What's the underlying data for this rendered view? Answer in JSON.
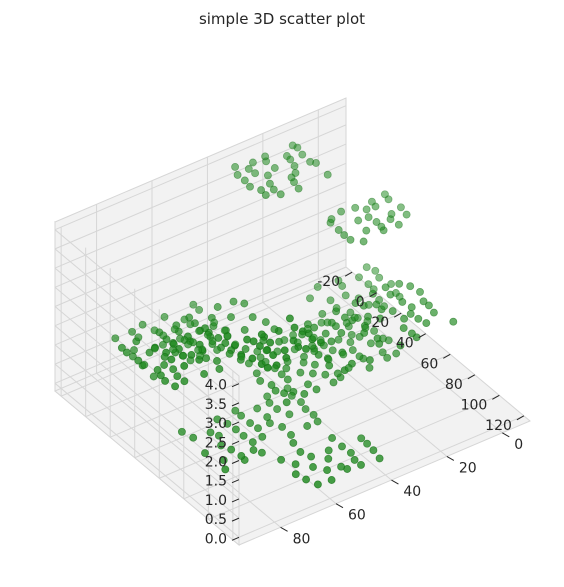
{
  "chart_data": {
    "type": "scatter",
    "projection": "3d",
    "title": "simple 3D scatter plot",
    "xlabel": "",
    "ylabel": "",
    "zlabel": "",
    "x_ticks": [
      "-20",
      "0",
      "20",
      "40",
      "60",
      "80",
      "100",
      "120"
    ],
    "y_ticks": [
      "0",
      "20",
      "40",
      "60",
      "80"
    ],
    "z_ticks": [
      "0.0",
      "0.5",
      "1.0",
      "1.5",
      "2.0",
      "2.5",
      "3.0",
      "3.5",
      "4.0"
    ],
    "xlim": [
      -25,
      125
    ],
    "ylim": [
      -10,
      95
    ],
    "zlim": [
      -0.2,
      4.2
    ],
    "grid": true,
    "marker_color": "#228B22",
    "pane_color": "#f2f2f2",
    "grid_color": "#d6d6d6",
    "view": {
      "elev_deg": 30,
      "azim_deg": 45
    },
    "layers": [
      {
        "z": 0.0,
        "clusters": [
          {
            "cx": 60,
            "cy": 60,
            "hw": 18,
            "hh": 18,
            "nx": 7,
            "ny": 7
          },
          {
            "cx": 100,
            "cy": 50,
            "hw": 12,
            "hh": 12,
            "nx": 5,
            "ny": 5
          }
        ]
      },
      {
        "z": 1.0,
        "clusters": [
          {
            "cx": 5,
            "cy": 65,
            "hw": 18,
            "hh": 14,
            "nx": 7,
            "ny": 6
          },
          {
            "cx": 55,
            "cy": 35,
            "hw": 20,
            "hh": 20,
            "nx": 9,
            "ny": 9
          },
          {
            "cx": 25,
            "cy": 10,
            "hw": 15,
            "hh": 12,
            "nx": 6,
            "ny": 5
          }
        ]
      },
      {
        "z": 2.0,
        "clusters": [
          {
            "cx": 40,
            "cy": 70,
            "hw": 20,
            "hh": 20,
            "nx": 8,
            "ny": 8
          },
          {
            "cx": 75,
            "cy": 25,
            "hw": 20,
            "hh": 20,
            "nx": 8,
            "ny": 8
          }
        ]
      },
      {
        "z": 3.0,
        "clusters": [
          {
            "cx": 65,
            "cy": 85,
            "hw": 10,
            "hh": 8,
            "nx": 5,
            "ny": 4
          },
          {
            "cx": 30,
            "cy": 5,
            "hw": 12,
            "hh": 10,
            "nx": 6,
            "ny": 5
          }
        ]
      },
      {
        "z": 4.0,
        "clusters": [
          {
            "cx": 110,
            "cy": 75,
            "hw": 12,
            "hh": 10,
            "nx": 6,
            "ny": 5
          },
          {
            "cx": 0,
            "cy": 25,
            "hw": 15,
            "hh": 10,
            "nx": 7,
            "ny": 5
          }
        ]
      }
    ]
  }
}
